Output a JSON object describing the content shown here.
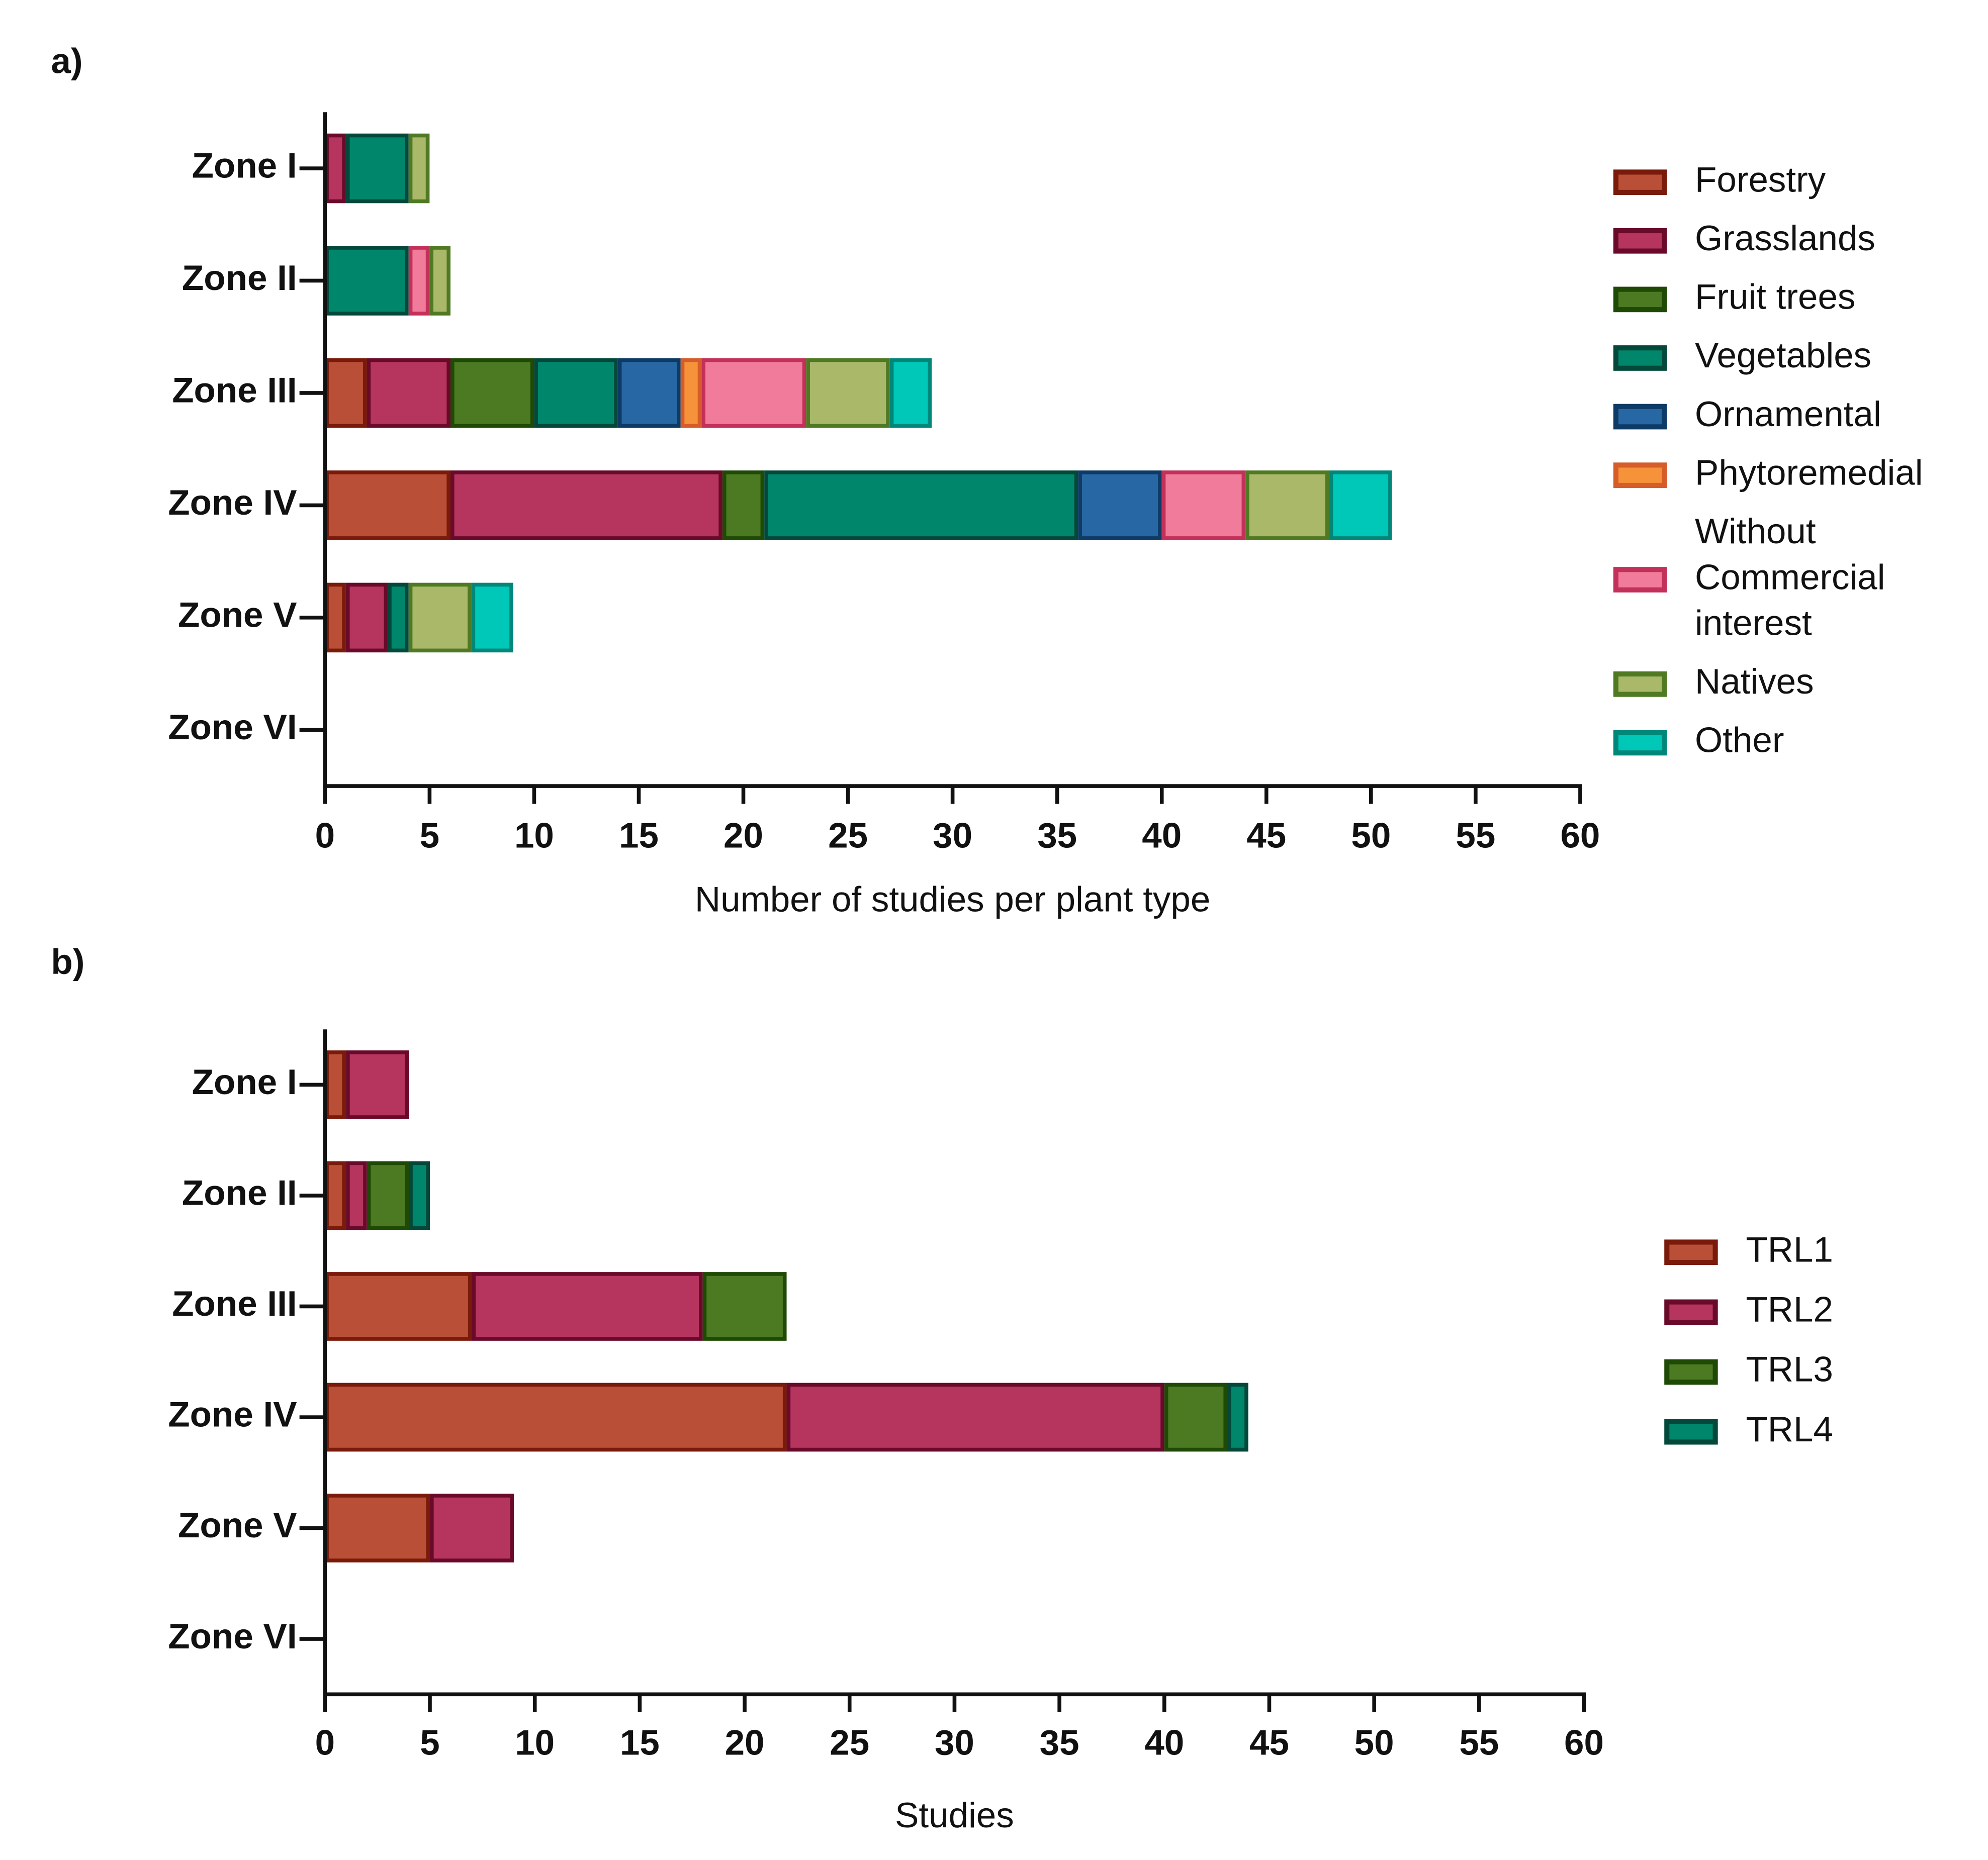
{
  "chart_data": [
    {
      "type": "bar",
      "orientation": "horizontal",
      "stacked": true,
      "panel_label": "a)",
      "categories": [
        "Zone I",
        "Zone II",
        "Zone III",
        "Zone IV",
        "Zone V",
        "Zone VI"
      ],
      "series": [
        {
          "name": "Forestry",
          "color": "#b94f37",
          "edgecolor": "#7a1a0a",
          "values": [
            0,
            0,
            2,
            6,
            1,
            0
          ]
        },
        {
          "name": "Grasslands",
          "color": "#b5355e",
          "edgecolor": "#6a0a2a",
          "values": [
            1,
            0,
            4,
            13,
            2,
            0
          ]
        },
        {
          "name": "Fruit trees",
          "color": "#4b7a23",
          "edgecolor": "#1f4a05",
          "values": [
            0,
            0,
            4,
            2,
            0,
            0
          ]
        },
        {
          "name": "Vegetables",
          "color": "#00876b",
          "edgecolor": "#03483a",
          "values": [
            3,
            4,
            4,
            15,
            1,
            0
          ]
        },
        {
          "name": "Ornamental",
          "color": "#2767a3",
          "edgecolor": "#0e3a66",
          "values": [
            0,
            0,
            3,
            4,
            0,
            0
          ]
        },
        {
          "name": "Phytoremedial",
          "color": "#f5923a",
          "edgecolor": "#d65c2a",
          "values": [
            0,
            0,
            1,
            0,
            0,
            0
          ]
        },
        {
          "name": "Without Commercial interest",
          "color": "#f07b9a",
          "edgecolor": "#c3305a",
          "values": [
            0,
            1,
            5,
            4,
            0,
            0
          ]
        },
        {
          "name": "Natives",
          "color": "#aab86a",
          "edgecolor": "#4f7a23",
          "values": [
            1,
            1,
            4,
            4,
            3,
            0
          ]
        },
        {
          "name": "Other",
          "color": "#00c8b8",
          "edgecolor": "#00877a",
          "values": [
            0,
            0,
            2,
            3,
            2,
            0
          ]
        }
      ],
      "xlabel": "Number of studies per plant type",
      "xlim": [
        0,
        60
      ],
      "xticks": [
        0,
        5,
        10,
        15,
        20,
        25,
        30,
        35,
        40,
        45,
        50,
        55,
        60
      ],
      "legend": "right"
    },
    {
      "type": "bar",
      "orientation": "horizontal",
      "stacked": true,
      "panel_label": "b)",
      "categories": [
        "Zone I",
        "Zone II",
        "Zone III",
        "Zone IV",
        "Zone V",
        "Zone VI"
      ],
      "series": [
        {
          "name": "TRL1",
          "color": "#b94f37",
          "edgecolor": "#7a1a0a",
          "values": [
            1,
            1,
            7,
            22,
            5,
            0
          ]
        },
        {
          "name": "TRL2",
          "color": "#b5355e",
          "edgecolor": "#6a0a2a",
          "values": [
            3,
            1,
            11,
            18,
            4,
            0
          ]
        },
        {
          "name": "TRL3",
          "color": "#4b7a23",
          "edgecolor": "#1f4a05",
          "values": [
            0,
            2,
            4,
            3,
            0,
            0
          ]
        },
        {
          "name": "TRL4",
          "color": "#00876b",
          "edgecolor": "#03483a",
          "values": [
            0,
            1,
            0,
            1,
            0,
            0
          ]
        }
      ],
      "xlabel": "Studies",
      "xlim": [
        0,
        60
      ],
      "xticks": [
        0,
        5,
        10,
        15,
        20,
        25,
        30,
        35,
        40,
        45,
        50,
        55,
        60
      ],
      "legend": "right"
    }
  ]
}
